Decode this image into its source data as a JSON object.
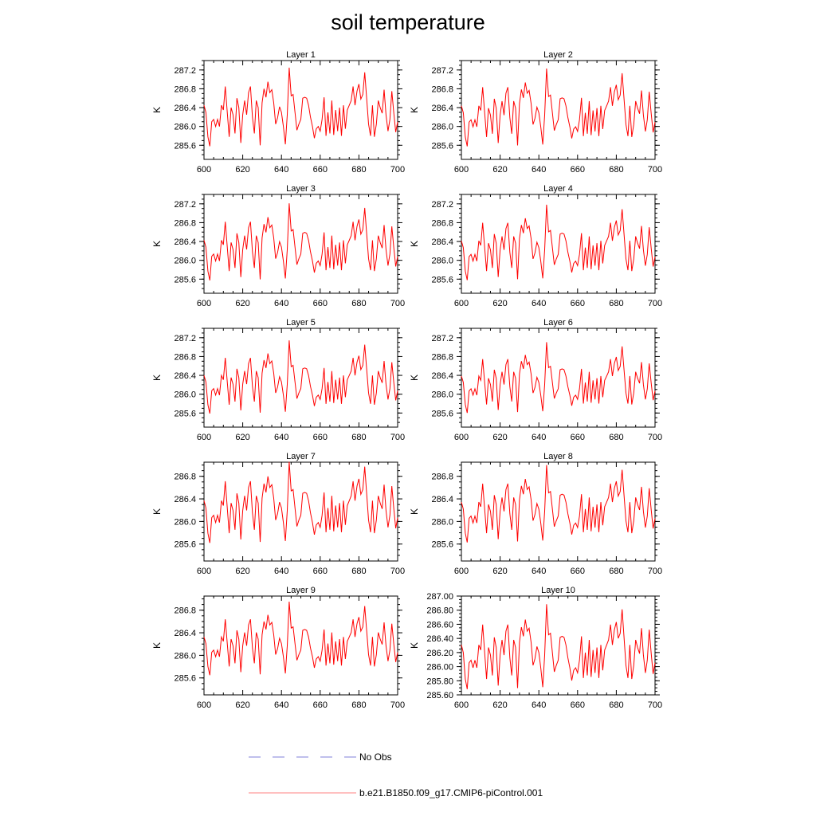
{
  "title": "soil temperature",
  "chart_data": {
    "type": "line",
    "xlim": [
      600,
      700
    ],
    "x_ticks": [
      600,
      620,
      640,
      660,
      680,
      700
    ],
    "x": [
      600,
      601,
      602,
      603,
      604,
      605,
      606,
      607,
      608,
      609,
      610,
      611,
      612,
      613,
      614,
      615,
      616,
      617,
      618,
      619,
      620,
      621,
      622,
      623,
      624,
      625,
      626,
      627,
      628,
      629,
      630,
      631,
      632,
      633,
      634,
      635,
      636,
      637,
      638,
      639,
      640,
      641,
      642,
      643,
      644,
      645,
      646,
      647,
      648,
      649,
      650,
      651,
      652,
      653,
      654,
      655,
      656,
      657,
      658,
      659,
      660,
      661,
      662,
      663,
      664,
      665,
      666,
      667,
      668,
      669,
      670,
      671,
      672,
      673,
      674,
      675,
      676,
      677,
      678,
      679,
      680,
      681,
      682,
      683,
      684,
      685,
      686,
      687,
      688,
      689,
      690,
      691,
      692,
      693,
      694,
      695,
      696,
      697,
      698,
      699,
      700
    ],
    "base_series": [
      286.45,
      286.3,
      285.78,
      285.58,
      286.1,
      286.15,
      286.0,
      286.15,
      286.0,
      286.45,
      286.35,
      286.85,
      286.3,
      285.78,
      286.4,
      286.25,
      285.85,
      286.6,
      286.4,
      285.65,
      286.25,
      286.55,
      286.25,
      286.72,
      286.85,
      286.2,
      285.85,
      286.55,
      286.4,
      285.6,
      286.5,
      286.8,
      286.62,
      286.95,
      286.72,
      286.78,
      286.5,
      286.05,
      286.18,
      286.42,
      286.3,
      286.0,
      285.62,
      286.25,
      287.25,
      286.65,
      286.68,
      286.3,
      285.92,
      286.05,
      286.15,
      286.6,
      286.62,
      286.6,
      286.45,
      286.2,
      286.0,
      285.75,
      285.95,
      286.0,
      285.9,
      286.15,
      286.62,
      285.8,
      286.3,
      285.85,
      286.55,
      285.82,
      286.35,
      285.9,
      286.4,
      285.8,
      286.45,
      285.95,
      286.35,
      286.45,
      286.55,
      286.85,
      286.45,
      286.75,
      286.9,
      286.58,
      286.68,
      287.15,
      286.6,
      286.05,
      285.8,
      286.45,
      285.78,
      286.05,
      286.55,
      286.4,
      286.28,
      286.78,
      286.25,
      285.9,
      286.15,
      286.75,
      286.3,
      285.88,
      286.1
    ],
    "series_name": "b.e21.B1850.f09_g17.CMIP6-piControl.001",
    "series_color": "#ff0000",
    "panels": [
      {
        "label": "Layer 1",
        "ylabel": "K",
        "ylim": [
          285.3,
          287.4
        ],
        "yticks": [
          "285.6",
          "286.0",
          "286.4",
          "286.8",
          "287.2"
        ],
        "amp": 1.0,
        "offset": 0.0
      },
      {
        "label": "Layer 2",
        "ylabel": "K",
        "ylim": [
          285.3,
          287.4
        ],
        "yticks": [
          "285.6",
          "286.0",
          "286.4",
          "286.8",
          "287.2"
        ],
        "amp": 0.99,
        "offset": -0.01
      },
      {
        "label": "Layer 3",
        "ylabel": "K",
        "ylim": [
          285.3,
          287.4
        ],
        "yticks": [
          "285.6",
          "286.0",
          "286.4",
          "286.8",
          "287.2"
        ],
        "amp": 0.98,
        "offset": -0.02
      },
      {
        "label": "Layer 4",
        "ylabel": "K",
        "ylim": [
          285.3,
          287.4
        ],
        "yticks": [
          "285.6",
          "286.0",
          "286.4",
          "286.8",
          "287.2"
        ],
        "amp": 0.96,
        "offset": -0.03
      },
      {
        "label": "Layer 5",
        "ylabel": "K",
        "ylim": [
          285.3,
          287.4
        ],
        "yticks": [
          "285.6",
          "286.0",
          "286.4",
          "286.8",
          "287.2"
        ],
        "amp": 0.93,
        "offset": -0.04
      },
      {
        "label": "Layer 6",
        "ylabel": "K",
        "ylim": [
          285.3,
          287.4
        ],
        "yticks": [
          "285.6",
          "286.0",
          "286.4",
          "286.8",
          "287.2"
        ],
        "amp": 0.9,
        "offset": -0.05
      },
      {
        "label": "Layer 7",
        "ylabel": "K",
        "ylim": [
          285.3,
          287.05
        ],
        "yticks": [
          "285.6",
          "286.0",
          "286.4",
          "286.8"
        ],
        "amp": 0.86,
        "offset": -0.06
      },
      {
        "label": "Layer 8",
        "ylabel": "K",
        "ylim": [
          285.3,
          287.05
        ],
        "yticks": [
          "285.6",
          "286.0",
          "286.4",
          "286.8"
        ],
        "amp": 0.82,
        "offset": -0.08
      },
      {
        "label": "Layer 9",
        "ylabel": "K",
        "ylim": [
          285.3,
          287.05
        ],
        "yticks": [
          "285.6",
          "286.0",
          "286.4",
          "286.8"
        ],
        "amp": 0.78,
        "offset": -0.09
      },
      {
        "label": "Layer 10",
        "ylabel": "K",
        "ylim": [
          285.6,
          287.0
        ],
        "yticks": [
          "285.60",
          "285.80",
          "286.00",
          "286.20",
          "286.40",
          "286.60",
          "286.80",
          "287.00"
        ],
        "amp": 0.72,
        "offset": -0.1
      }
    ],
    "legend": [
      {
        "label": "No Obs",
        "style": "dashed",
        "color": "#7f7fd9"
      },
      {
        "label": "b.e21.B1850.f09_g17.CMIP6-piControl.001",
        "style": "solid",
        "color": "#ff8080"
      }
    ]
  }
}
